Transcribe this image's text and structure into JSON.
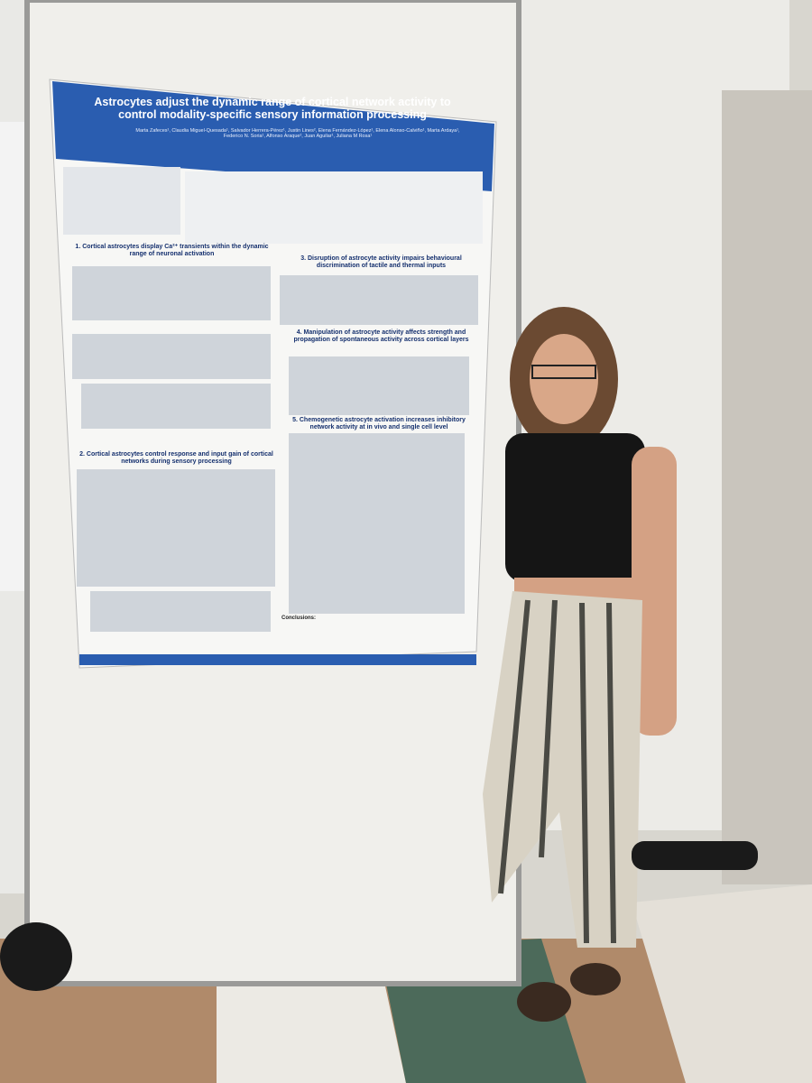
{
  "poster": {
    "title": "Astrocytes adjust the dynamic range of cortical network activity to control modality-specific sensory information processing",
    "authors": "Marta Zafeces¹, Claudia Miguel-Quesada¹, Salvador Herrera-Pérez¹, Justin Lines², Elena Fernández-López¹, Elena Alonso-Calviño¹, Marta Ardaya¹, Federico N. Soria¹, Alfonso Araque², Juan Aguilar¹, Juliana M Rosa¹",
    "sections": [
      "1. Cortical astrocytes display Ca²⁺ transients within the dynamic range of neuronal activation",
      "2. Cortical astrocytes control response and input gain of cortical networks during sensory processing",
      "3. Disruption of astrocyte activity impairs behavioural discrimination of tactile and thermal inputs",
      "4. Manipulation of astrocyte activity affects strength and propagation of spontaneous activity across cortical layers",
      "5. Chemogenetic astrocyte activation increases inhibitory network activity at in vivo and single cell level"
    ],
    "conclusions": "Conclusions:"
  }
}
